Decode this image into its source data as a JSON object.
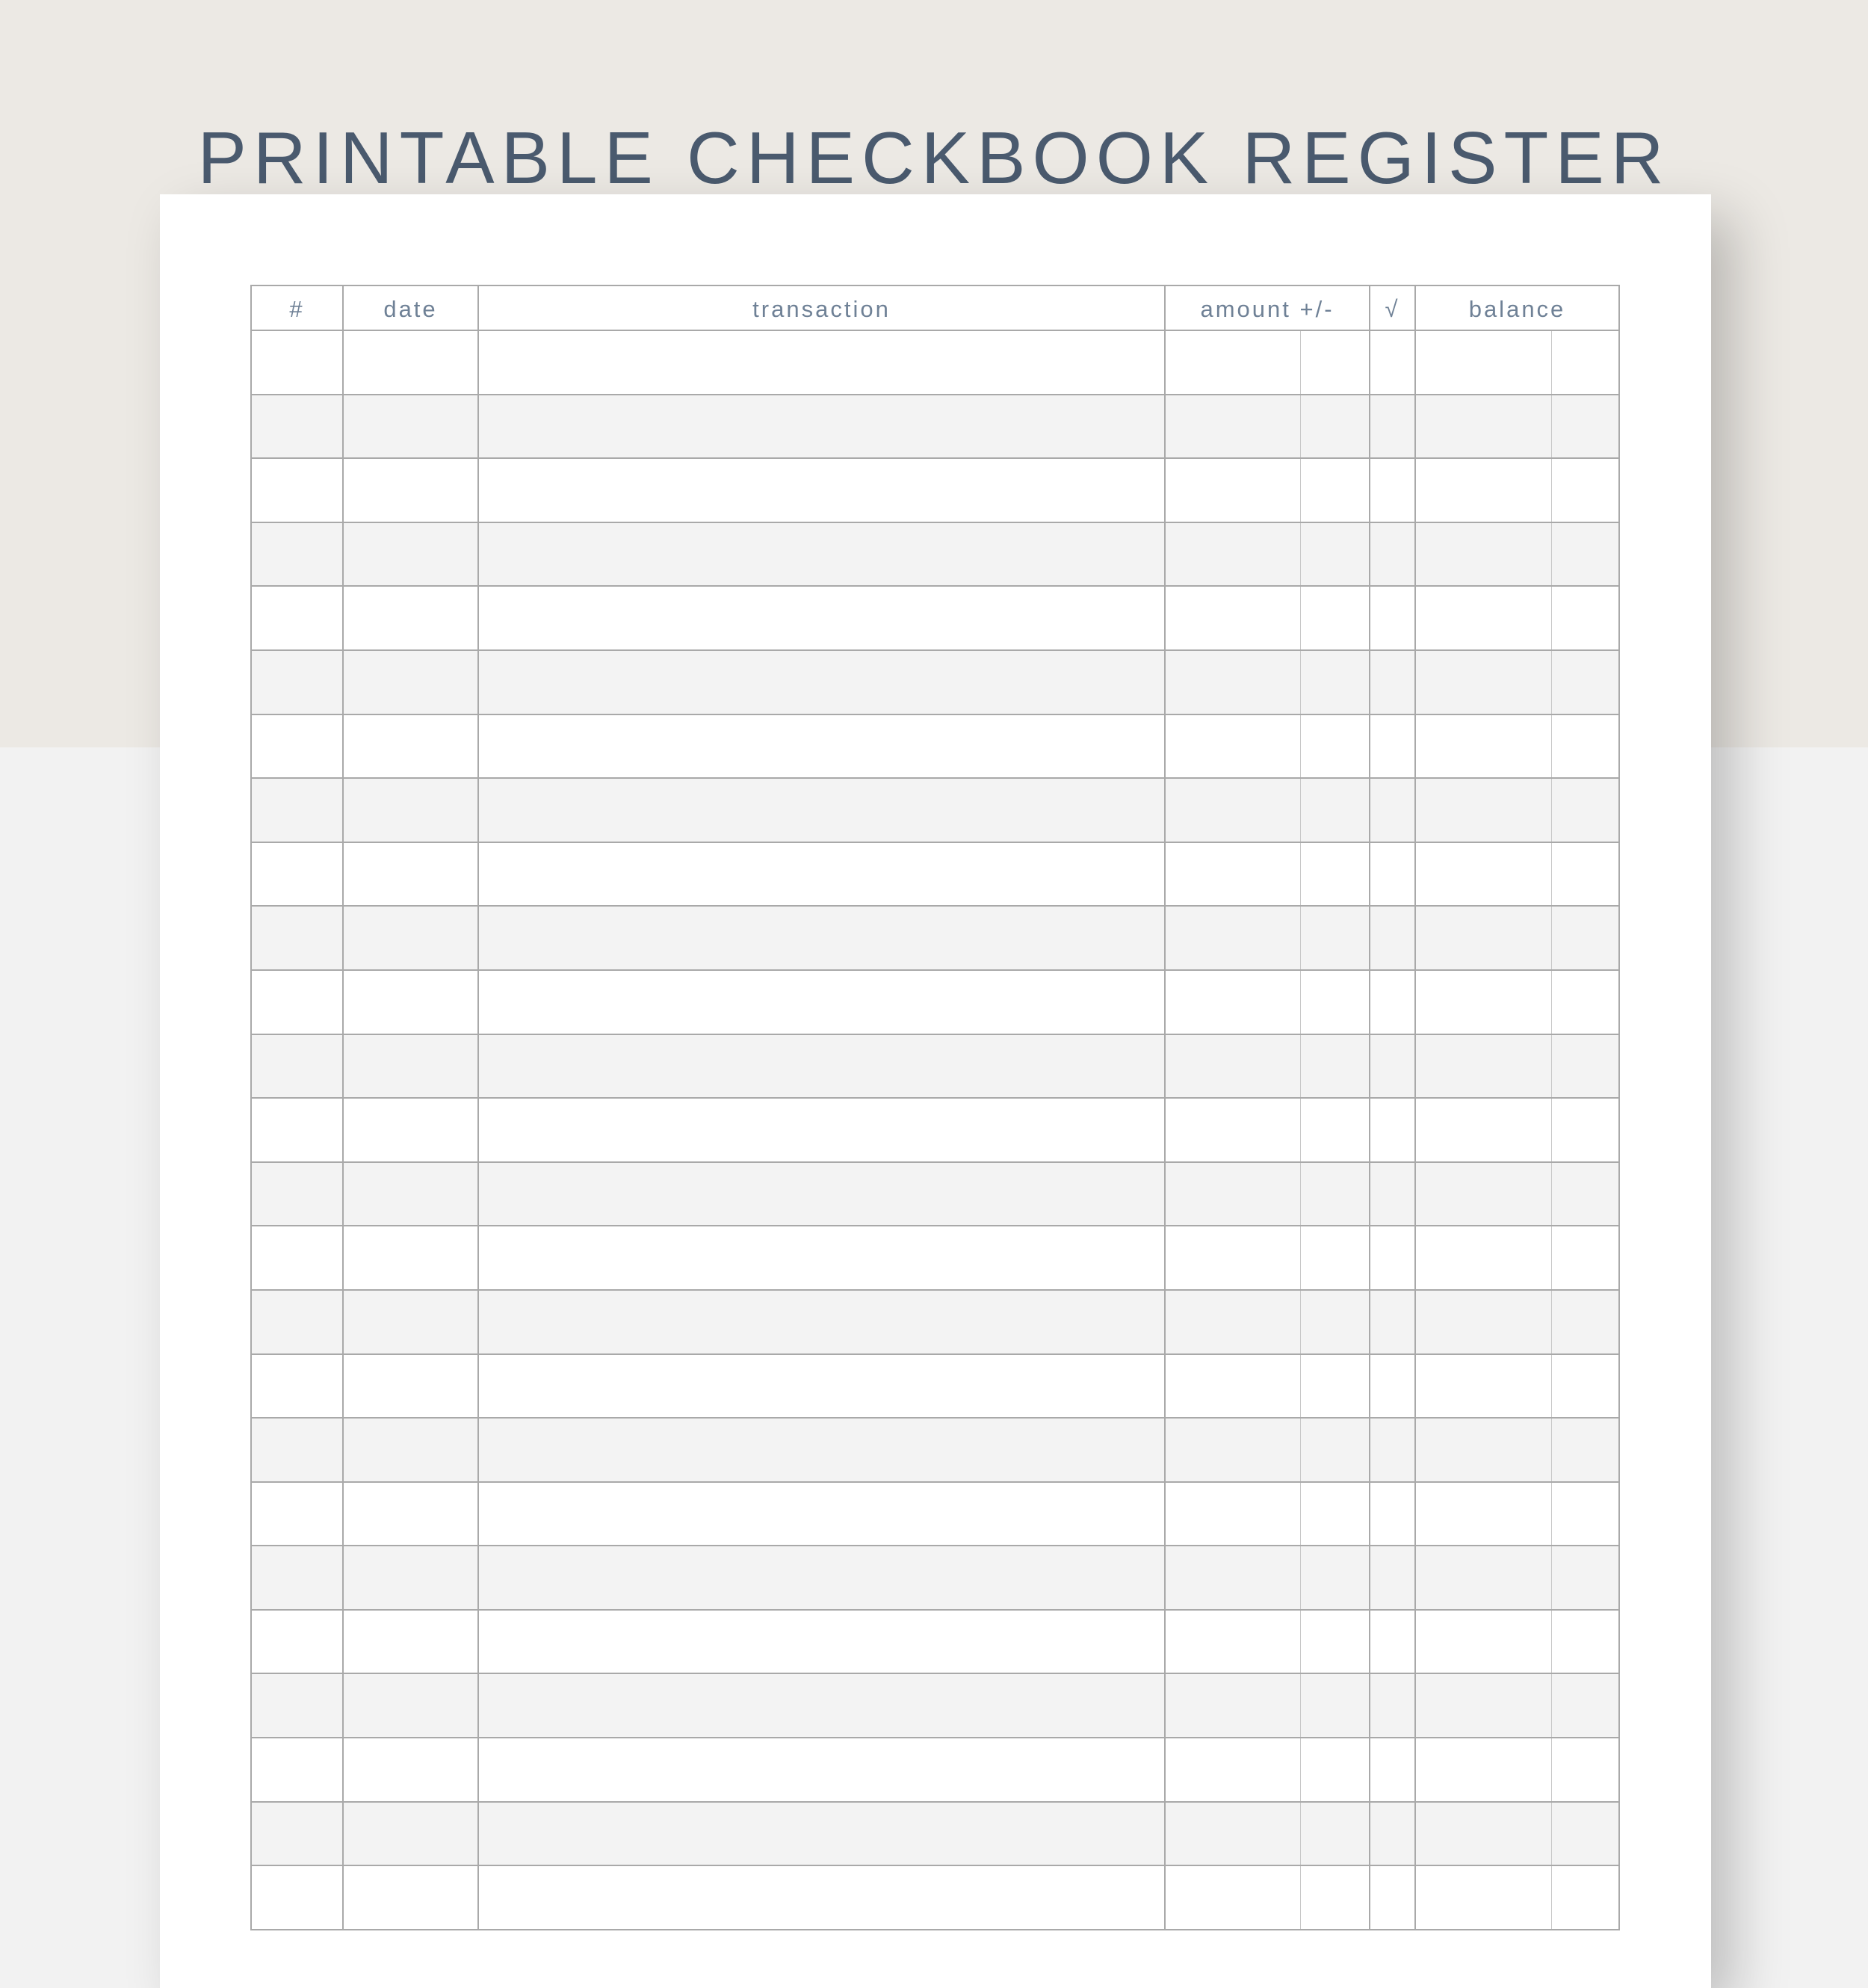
{
  "title": "PRINTABLE CHECKBOOK REGISTER",
  "columns": {
    "number": "#",
    "date": "date",
    "transaction": "transaction",
    "amount": "amount +/-",
    "check": "√",
    "balance": "balance"
  },
  "colors": {
    "title": "#4a5a6e",
    "header_text": "#6f8196",
    "top_background": "#ece9e4",
    "row_shading": "#f3f3f3",
    "grid_line": "#a9a9a9"
  }
}
